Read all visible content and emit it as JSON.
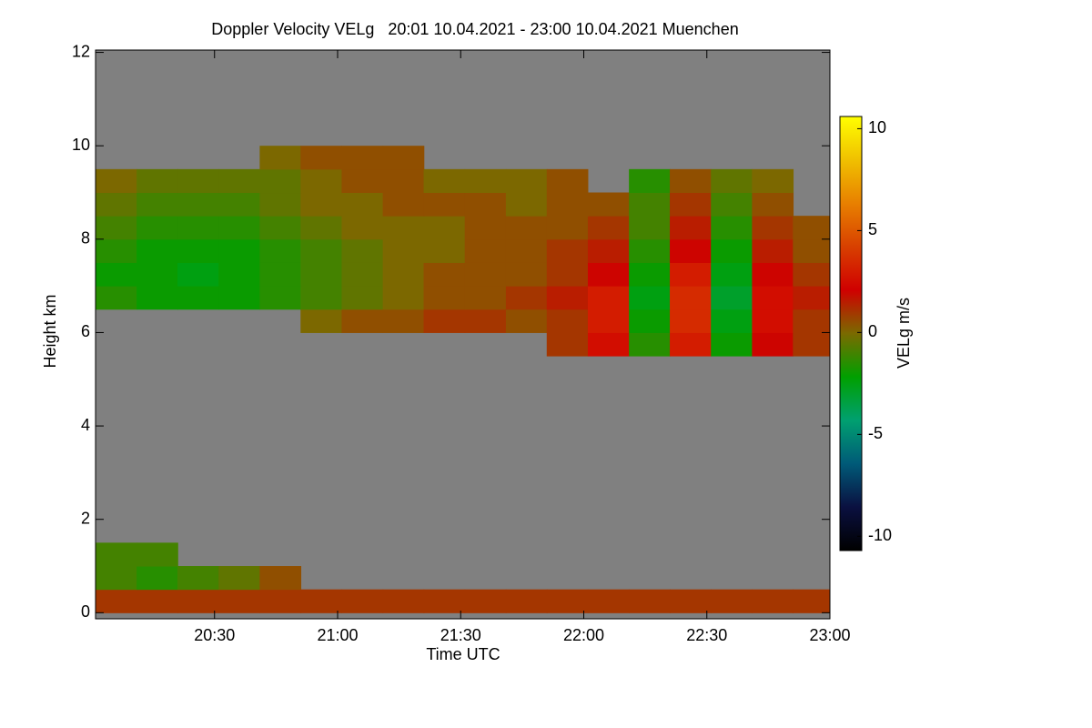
{
  "chart_data": {
    "type": "heatmap",
    "title": "Doppler Velocity VELg   20:01 10.04.2021 - 23:00 10.04.2021 Muenchen",
    "x_label": "Time UTC",
    "y_label": "Height km",
    "colorbar_label": "VELg m/s",
    "x": [
      20.1,
      20.267,
      20.433,
      20.6,
      20.767,
      20.933,
      21.1,
      21.267,
      21.433,
      21.6,
      21.767,
      21.933,
      22.1,
      22.267,
      22.433,
      22.6,
      22.767,
      22.933
    ],
    "y": [
      0.25,
      0.75,
      1.25,
      1.75,
      2.25,
      2.75,
      3.25,
      3.75,
      4.25,
      4.75,
      5.25,
      5.75,
      6.25,
      6.75,
      7.25,
      7.75,
      8.25,
      8.75,
      9.25,
      9.75,
      10.25,
      10.75,
      11.25,
      11.75
    ],
    "z": [
      [
        1,
        1,
        1,
        1,
        1,
        1,
        1,
        1,
        1,
        1,
        1,
        1,
        1,
        1,
        1,
        1,
        1,
        1
      ],
      [
        -1,
        -1.5,
        -1,
        -0.5,
        0.5,
        null,
        null,
        null,
        null,
        null,
        null,
        null,
        null,
        null,
        null,
        null,
        null,
        null
      ],
      [
        -1,
        -1,
        null,
        null,
        null,
        null,
        null,
        null,
        null,
        null,
        null,
        null,
        null,
        null,
        null,
        null,
        null,
        null
      ],
      [
        null,
        null,
        null,
        null,
        null,
        null,
        null,
        null,
        null,
        null,
        null,
        null,
        null,
        null,
        null,
        null,
        null,
        null
      ],
      [
        null,
        null,
        null,
        null,
        null,
        null,
        null,
        null,
        null,
        null,
        null,
        null,
        null,
        null,
        null,
        null,
        null,
        null
      ],
      [
        null,
        null,
        null,
        null,
        null,
        null,
        null,
        null,
        null,
        null,
        null,
        null,
        null,
        null,
        null,
        null,
        null,
        null
      ],
      [
        null,
        null,
        null,
        null,
        null,
        null,
        null,
        null,
        null,
        null,
        null,
        null,
        null,
        null,
        null,
        null,
        null,
        null
      ],
      [
        null,
        null,
        null,
        null,
        null,
        null,
        null,
        null,
        null,
        null,
        null,
        null,
        null,
        null,
        null,
        null,
        null,
        null
      ],
      [
        null,
        null,
        null,
        null,
        null,
        null,
        null,
        null,
        null,
        null,
        null,
        null,
        null,
        null,
        null,
        null,
        null,
        null
      ],
      [
        null,
        null,
        null,
        null,
        null,
        null,
        null,
        null,
        null,
        null,
        null,
        null,
        null,
        null,
        null,
        null,
        null,
        null
      ],
      [
        null,
        null,
        null,
        null,
        null,
        null,
        null,
        null,
        null,
        null,
        null,
        null,
        null,
        null,
        null,
        null,
        null,
        null
      ],
      [
        null,
        null,
        null,
        null,
        null,
        null,
        null,
        null,
        null,
        null,
        null,
        1,
        2.5,
        -1.5,
        3,
        -2,
        2,
        1
      ],
      [
        null,
        null,
        null,
        null,
        null,
        0,
        0.5,
        0.5,
        1,
        1,
        0.5,
        1,
        3,
        -2,
        3.5,
        -2.5,
        2.5,
        1
      ],
      [
        -1.5,
        -2,
        -2,
        -2,
        -1.5,
        -1,
        -0.5,
        0,
        0.5,
        0.5,
        1,
        1.5,
        3,
        -2.5,
        3.5,
        -3,
        2.5,
        1.5
      ],
      [
        -2,
        -2,
        -2.5,
        -2,
        -1.5,
        -1,
        -0.5,
        0,
        0.5,
        0.5,
        0.5,
        1,
        2,
        -2,
        3,
        -2.5,
        2,
        1
      ],
      [
        -1.5,
        -2,
        -2,
        -2,
        -1.5,
        -1,
        -0.5,
        0,
        0,
        0.5,
        0.5,
        1,
        1.5,
        -1.5,
        2,
        -2,
        1.5,
        0.5
      ],
      [
        -1,
        -1.5,
        -1.5,
        -1.5,
        -1,
        -0.5,
        0,
        0,
        0,
        0.5,
        0.5,
        0.5,
        1,
        -1,
        1.5,
        -1.5,
        1,
        0.5
      ],
      [
        -0.5,
        -1,
        -1,
        -1,
        -0.5,
        0,
        0,
        0.5,
        0.5,
        0.5,
        0,
        0.5,
        0.5,
        -1,
        1,
        -1,
        0.5,
        null
      ],
      [
        0,
        -0.5,
        -0.5,
        -0.5,
        -0.5,
        0,
        0.5,
        0.5,
        0,
        0,
        0,
        0.5,
        null,
        -1.5,
        0.5,
        -0.5,
        0,
        null
      ],
      [
        null,
        null,
        null,
        null,
        0,
        0.5,
        0.5,
        0.5,
        null,
        null,
        null,
        null,
        null,
        null,
        null,
        null,
        null,
        null
      ],
      [
        null,
        null,
        null,
        null,
        null,
        null,
        null,
        null,
        null,
        null,
        null,
        null,
        null,
        null,
        null,
        null,
        null,
        null
      ],
      [
        null,
        null,
        null,
        null,
        null,
        null,
        null,
        null,
        null,
        null,
        null,
        null,
        null,
        null,
        null,
        null,
        null,
        null
      ],
      [
        null,
        null,
        null,
        null,
        null,
        null,
        null,
        null,
        null,
        null,
        null,
        null,
        null,
        null,
        null,
        null,
        null,
        null
      ],
      [
        null,
        null,
        null,
        null,
        null,
        null,
        null,
        null,
        null,
        null,
        null,
        null,
        null,
        null,
        null,
        null,
        null,
        null
      ]
    ],
    "xlim": [
      20.0167,
      23.0
    ],
    "xticks": [
      {
        "value": 20.5,
        "label": "20:30"
      },
      {
        "value": 21,
        "label": "21:00"
      },
      {
        "value": 21.5,
        "label": "21:30"
      },
      {
        "value": 22,
        "label": "22:00"
      },
      {
        "value": 22.5,
        "label": "22:30"
      },
      {
        "value": 23,
        "label": "23:00"
      }
    ],
    "ylim": [
      -0.13,
      12.05
    ],
    "yticks": [
      0,
      2,
      4,
      6,
      8,
      10,
      12
    ],
    "clim": [
      -10.7,
      10.6
    ],
    "cticks": [
      -10,
      -5,
      0,
      5,
      10
    ],
    "background_color": "#808080",
    "colormap": [
      "#000000",
      "#0a1040",
      "#005a78",
      "#00a070",
      "#00a000",
      "#7a6a00",
      "#d00000",
      "#d84000",
      "#e88000",
      "#f0c000",
      "#ffff00"
    ]
  }
}
